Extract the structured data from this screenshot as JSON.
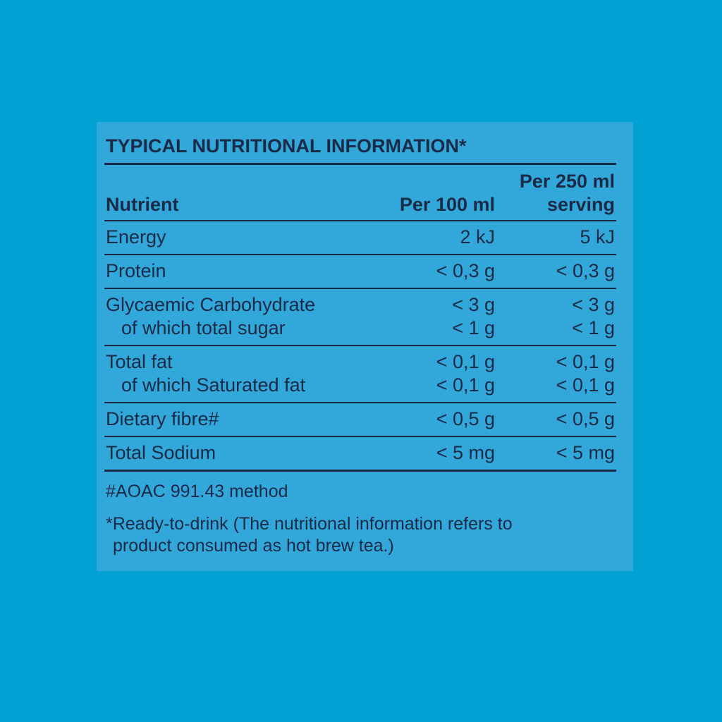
{
  "title": "TYPICAL NUTRITIONAL INFORMATION*",
  "table": {
    "headers": [
      "Nutrient",
      "Per 100 ml",
      [
        "Per 250 ml",
        "serving"
      ]
    ],
    "rows": [
      [
        [
          "Energy",
          "2 kJ",
          "5 kJ"
        ]
      ],
      [
        [
          "Protein",
          "< 0,3 g",
          "< 0,3 g"
        ]
      ],
      [
        [
          "Glycaemic Carbohydrate",
          "< 3 g",
          "< 3 g"
        ],
        [
          "of which total sugar",
          "< 1 g",
          "< 1 g"
        ]
      ],
      [
        [
          "Total fat",
          "< 0,1 g",
          "< 0,1 g"
        ],
        [
          "of which Saturated fat",
          "< 0,1 g",
          "< 0,1 g"
        ]
      ],
      [
        [
          "Dietary fibre#",
          "< 0,5 g",
          "< 0,5 g"
        ]
      ],
      [
        [
          "Total Sodium",
          "< 5 mg",
          "< 5 mg"
        ]
      ]
    ]
  },
  "footnotes": [
    [
      "#AOAC 991.43 method"
    ],
    [
      "*Ready-to-drink (The nutritional information refers to",
      "product consumed as hot brew tea.)"
    ]
  ]
}
